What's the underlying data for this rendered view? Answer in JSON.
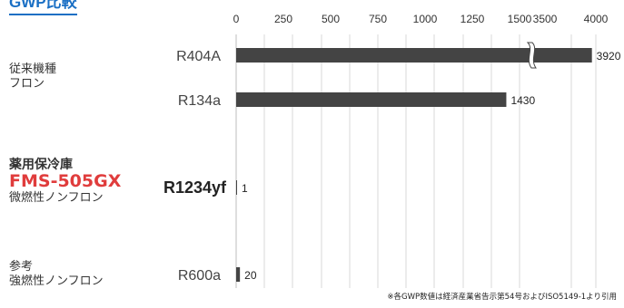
{
  "title": "GWP比較",
  "groups": {
    "g1": {
      "line1": "従来機種",
      "line2": "フロン"
    },
    "g2": {
      "line1": "薬用保冷庫",
      "model": "FMS-505GX",
      "line3": "微燃性ノンフロン"
    },
    "g3": {
      "line1": "参考",
      "line2": "強燃性ノンフロン"
    }
  },
  "footnote": "※各GWP数値は経済産業省告示第54号およびISO5149-1より引用",
  "colors": {
    "bar": "#444444",
    "title": "#1a6fc4",
    "model": "#e03c3c",
    "grid": "#d9d9d9"
  },
  "chart_data": {
    "type": "bar",
    "orientation": "horizontal",
    "title": "GWP比較",
    "xlabel": "",
    "ylabel": "",
    "x_ticks": [
      "0",
      "250",
      "500",
      "750",
      "1000",
      "1250",
      "1500",
      "3500",
      "4000"
    ],
    "x_tick_values": [
      0,
      250,
      500,
      750,
      1000,
      1250,
      1500,
      3500,
      4000
    ],
    "axis_break": {
      "from": 1500,
      "to": 3500
    },
    "xlim": [
      0,
      4000
    ],
    "grid": true,
    "categories": [
      "R404A",
      "R134a",
      "R1234yf",
      "R600a"
    ],
    "values": [
      3920,
      1430,
      1,
      20
    ],
    "value_labels": [
      "3920",
      "1430",
      "1",
      "20"
    ],
    "highlight_category": "R1234yf"
  }
}
